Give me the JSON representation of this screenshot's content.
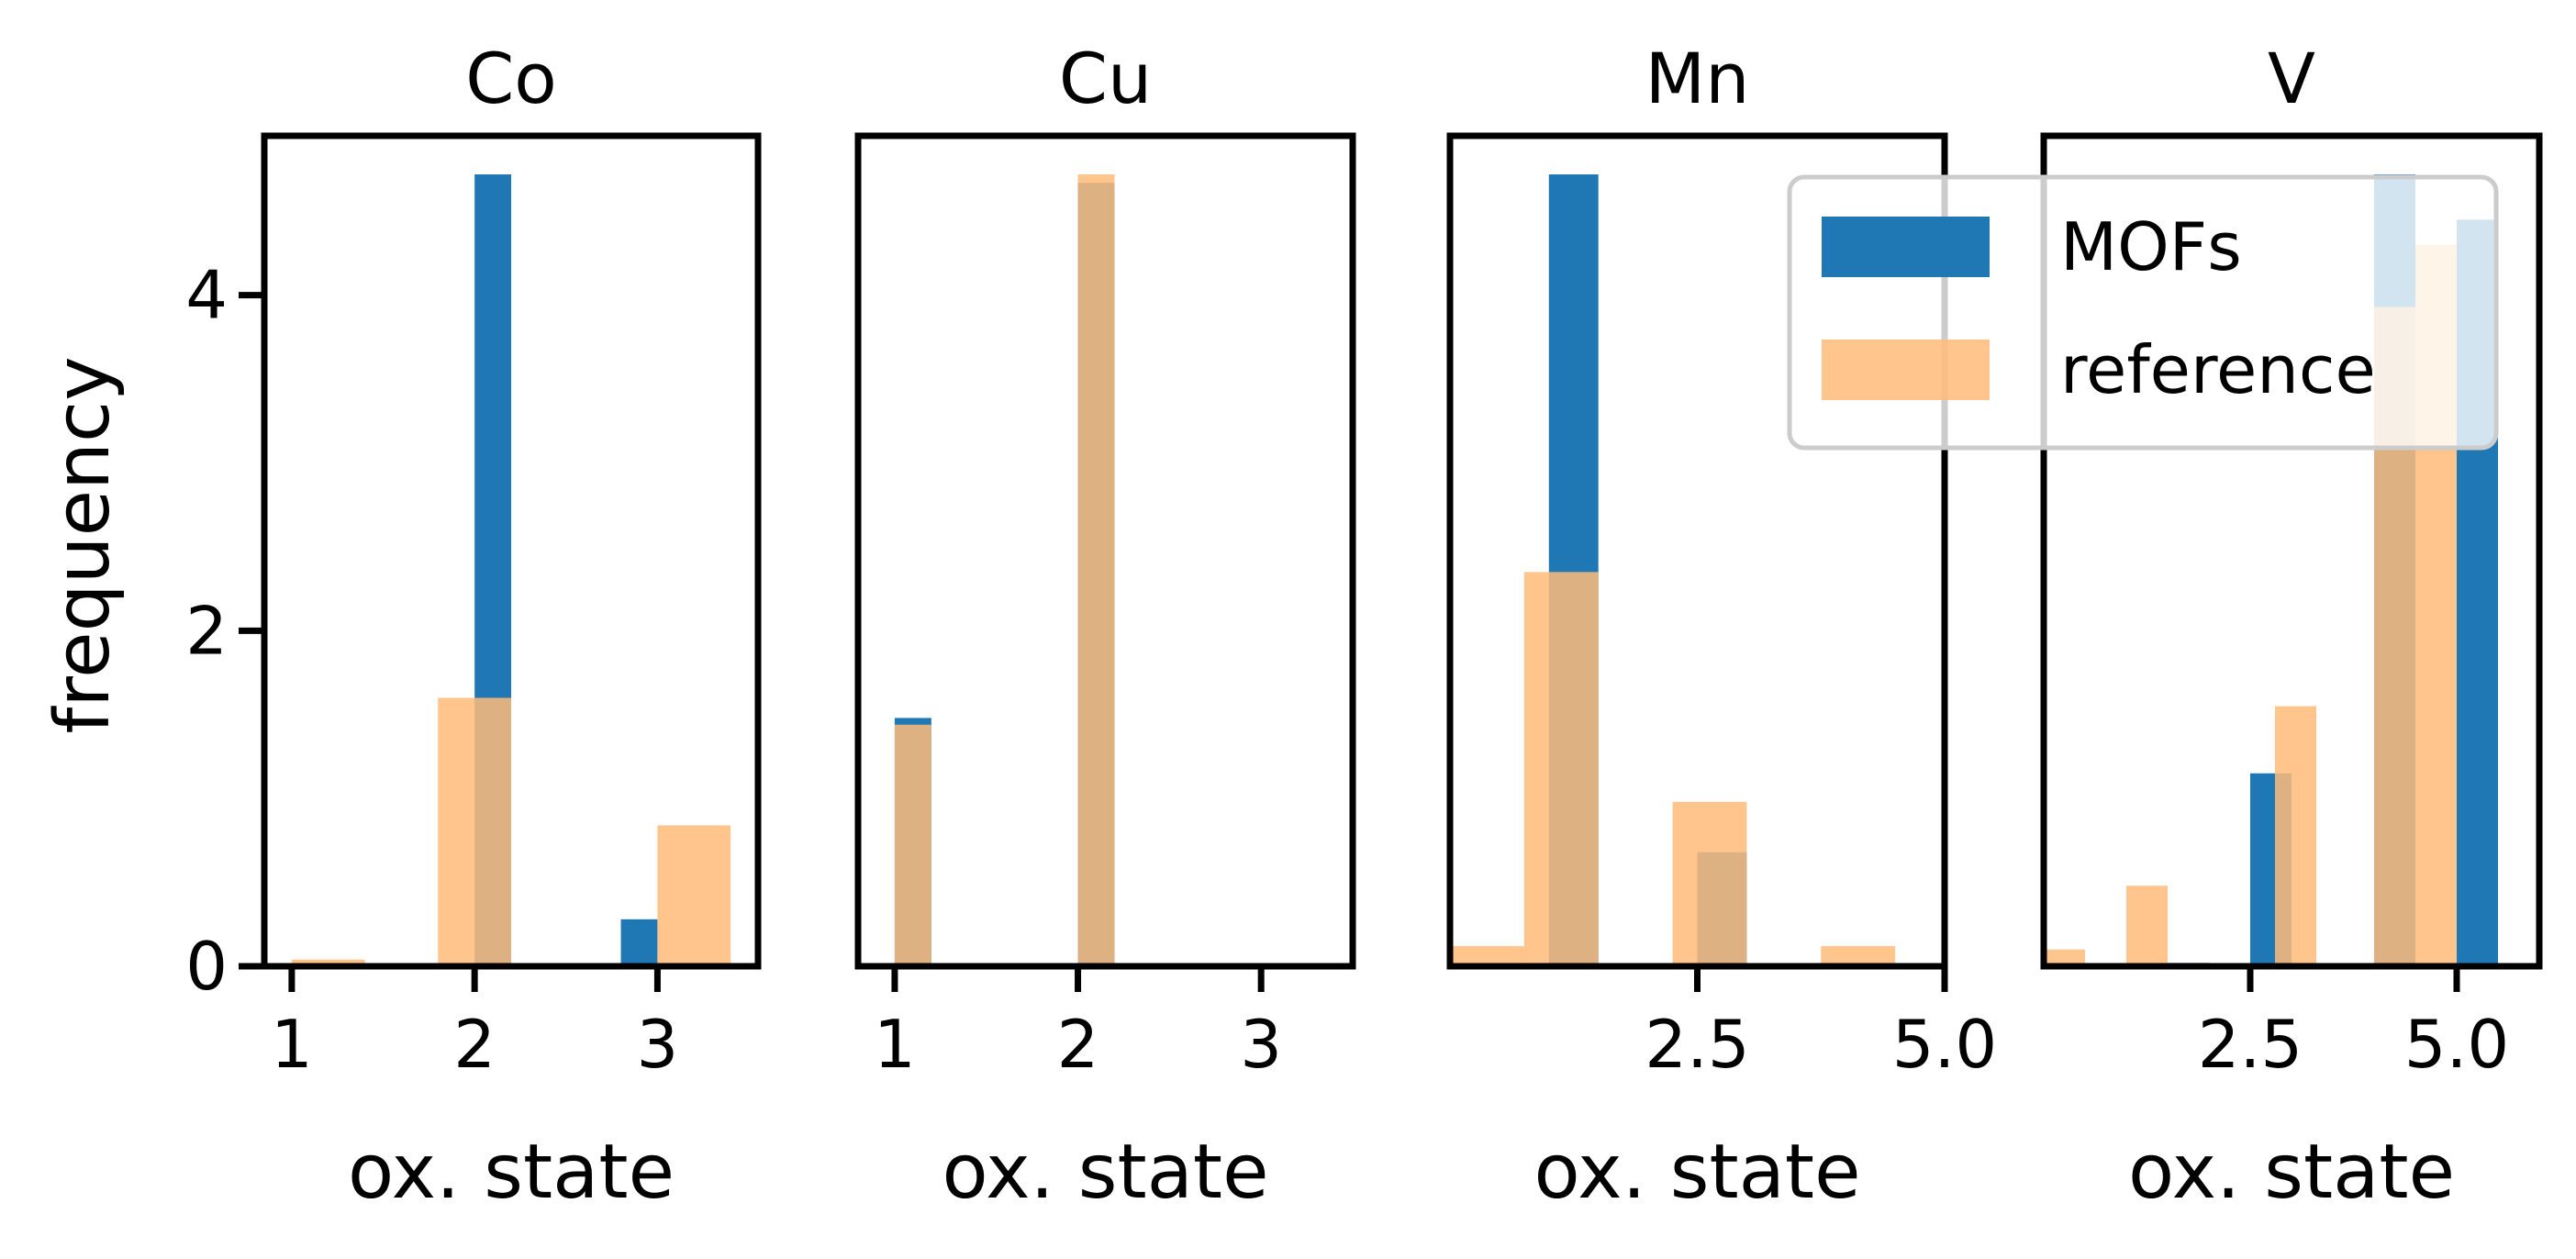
{
  "figure": {
    "ylabel": "frequency",
    "legend_position": "upper right of Mn / V panels"
  },
  "colors": {
    "mofs": "#1f77b4",
    "reference": "#ffbb78",
    "overlap": "#8c7a5e"
  },
  "legend": {
    "entries": [
      "MOFs",
      "reference"
    ]
  },
  "chart_data": [
    {
      "type": "bar",
      "title": "Co",
      "xlabel": "ox. state",
      "ylabel": "frequency",
      "xlim": [
        0.85,
        3.55
      ],
      "ylim": [
        0,
        4.95
      ],
      "xticks": [
        1,
        2,
        3
      ],
      "xtick_labels": [
        "1",
        "2",
        "3"
      ],
      "yticks": [
        0,
        2,
        4
      ],
      "ytick_labels": [
        "0",
        "2",
        "4"
      ],
      "bin_width": 0.2,
      "series": [
        {
          "name": "MOFs",
          "bins": [
            [
              2.0,
              2.2,
              4.72
            ],
            [
              2.8,
              3.0,
              0.28
            ]
          ]
        },
        {
          "name": "reference",
          "bins": [
            [
              1.0,
              1.4,
              0.04
            ],
            [
              1.8,
              2.2,
              1.6
            ],
            [
              3.0,
              3.4,
              0.84
            ]
          ]
        }
      ]
    },
    {
      "type": "bar",
      "title": "Cu",
      "xlabel": "ox. state",
      "xlim": [
        0.8,
        3.5
      ],
      "ylim": [
        0,
        4.95
      ],
      "xticks": [
        1,
        2,
        3
      ],
      "xtick_labels": [
        "1",
        "2",
        "3"
      ],
      "series": [
        {
          "name": "MOFs",
          "bins": [
            [
              1.0,
              1.2,
              1.48
            ],
            [
              2.0,
              2.2,
              4.67
            ]
          ]
        },
        {
          "name": "reference",
          "bins": [
            [
              1.0,
              1.2,
              1.44
            ],
            [
              2.0,
              2.2,
              4.72
            ]
          ]
        }
      ]
    },
    {
      "type": "bar",
      "title": "Mn",
      "xlabel": "ox. state",
      "xlim": [
        0.0,
        5.0
      ],
      "ylim": [
        0,
        4.95
      ],
      "xticks": [
        2.5,
        5.0
      ],
      "xtick_labels": [
        "2.5",
        "5.0"
      ],
      "series": [
        {
          "name": "MOFs",
          "bins": [
            [
              1.0,
              1.5,
              4.72
            ],
            [
              2.5,
              3.0,
              0.68
            ]
          ]
        },
        {
          "name": "reference",
          "bins": [
            [
              0.0,
              0.75,
              0.12
            ],
            [
              0.75,
              1.5,
              2.35
            ],
            [
              2.25,
              3.0,
              0.98
            ],
            [
              3.75,
              4.5,
              0.12
            ]
          ]
        }
      ]
    },
    {
      "type": "bar",
      "title": "V",
      "xlabel": "ox. state",
      "xlim": [
        0.0,
        6.0
      ],
      "ylim": [
        0,
        4.95
      ],
      "xticks": [
        2.5,
        5.0
      ],
      "xtick_labels": [
        "2.5",
        "5.0"
      ],
      "series": [
        {
          "name": "MOFs",
          "bins": [
            [
              1.5,
              2.0,
              0.02
            ],
            [
              2.5,
              3.0,
              1.15
            ],
            [
              4.0,
              4.5,
              4.72
            ],
            [
              5.0,
              5.5,
              4.45
            ]
          ]
        },
        {
          "name": "reference",
          "bins": [
            [
              0.0,
              0.5,
              0.1
            ],
            [
              1.0,
              1.5,
              0.48
            ],
            [
              2.8,
              3.3,
              1.55
            ],
            [
              4.0,
              4.5,
              3.93
            ],
            [
              4.5,
              5.0,
              4.3
            ]
          ]
        }
      ]
    }
  ]
}
